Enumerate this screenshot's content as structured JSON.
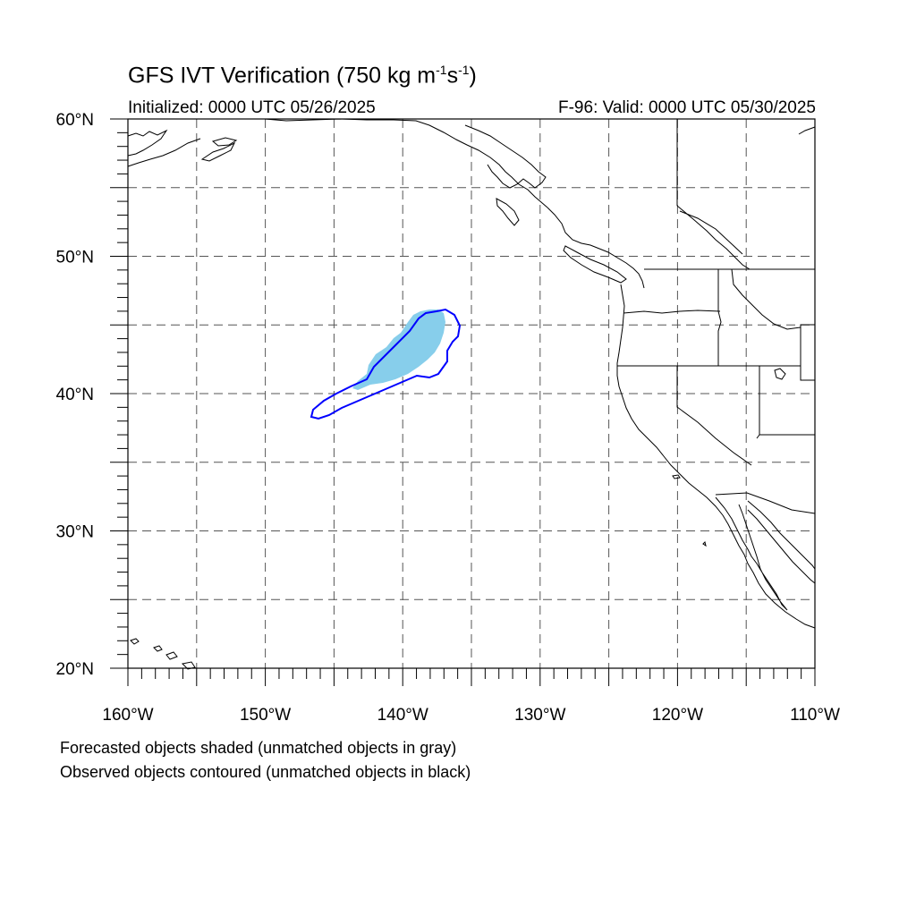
{
  "title": {
    "main": "GFS IVT Verification (750 kg m",
    "sup1": "-1",
    "mid": "s",
    "sup2": "-1",
    "end": ")"
  },
  "subtitle": {
    "initialized": "Initialized: 0000 UTC 05/26/2025",
    "valid": "F-96: Valid: 0000 UTC 05/30/2025"
  },
  "map": {
    "lon_range": [
      -160,
      -110
    ],
    "lat_range": [
      20,
      60
    ],
    "grid_spacing_deg": 5,
    "grid_style": "dashed",
    "lat_ticks": [
      {
        "lat": 60,
        "label": "60°N"
      },
      {
        "lat": 50,
        "label": "50°N"
      },
      {
        "lat": 40,
        "label": "40°N"
      },
      {
        "lat": 30,
        "label": "30°N"
      },
      {
        "lat": 20,
        "label": "20°N"
      }
    ],
    "lon_ticks": [
      {
        "lon": -160,
        "label": "160°W"
      },
      {
        "lon": -150,
        "label": "150°W"
      },
      {
        "lon": -140,
        "label": "140°W"
      },
      {
        "lon": -130,
        "label": "130°W"
      },
      {
        "lon": -120,
        "label": "120°W"
      },
      {
        "lon": -110,
        "label": "110°W"
      }
    ],
    "forecast_object_color": "#87ceeb",
    "observed_object_color": "#0000ff",
    "coast_color": "#000000"
  },
  "footnotes": {
    "line1": "Forecasted objects shaded (unmatched objects in gray)",
    "line2": "Observed objects contoured (unmatched objects in black)"
  }
}
